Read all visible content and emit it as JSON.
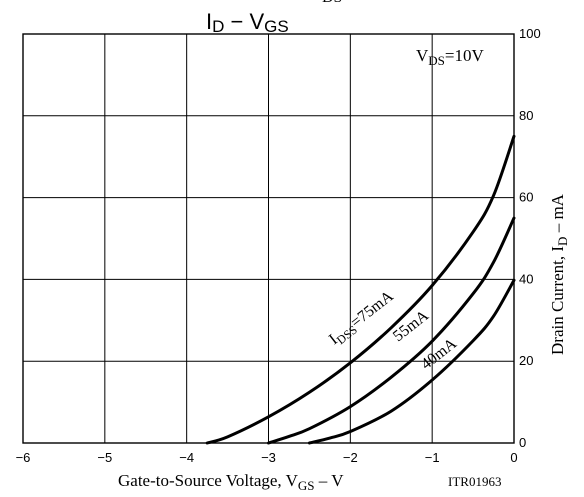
{
  "chart_data": {
    "type": "line",
    "title_main": "I",
    "title_main_sub": "D",
    "title_sep": " − ",
    "title_var": "V",
    "title_var_sub": "GS",
    "title_clipped_sub": "DS",
    "xlim": [
      -6,
      0
    ],
    "ylim": [
      0,
      100
    ],
    "x_ticks": [
      "−6",
      "−5",
      "−4",
      "−3",
      "−2",
      "−1",
      "0"
    ],
    "y_ticks": [
      "0",
      "20",
      "40",
      "60",
      "80",
      "100"
    ],
    "xlabel": {
      "prefix": "Gate-to-Source Voltage, V",
      "sub": "GS",
      "suffix": " – V"
    },
    "ylabel": {
      "prefix": "Drain Current, I",
      "sub": "D",
      "suffix": " – mA"
    },
    "condition": {
      "prefix": "V",
      "sub": "DS",
      "suffix": "=10V"
    },
    "code": "ITR01963",
    "grid": true,
    "series": [
      {
        "label_prefix": "I",
        "label_sub": "DSS",
        "label_suffix": "=75mA",
        "x": [
          -3.75,
          -3.5,
          -3.0,
          -2.5,
          -2.0,
          -1.5,
          -1.0,
          -0.5,
          -0.25,
          0.0
        ],
        "y": [
          0,
          1.5,
          6.4,
          12.4,
          19.6,
          28.2,
          38.5,
          51.6,
          60.5,
          75
        ]
      },
      {
        "label_prefix": "",
        "label_sub": "",
        "label_suffix": "55mA",
        "x": [
          -3.0,
          -2.75,
          -2.5,
          -2.0,
          -1.5,
          -1.0,
          -0.5,
          -0.25,
          0.0
        ],
        "y": [
          0,
          1.6,
          3.5,
          8.9,
          16.1,
          24.9,
          36.5,
          44.2,
          55
        ]
      },
      {
        "label_prefix": "",
        "label_sub": "",
        "label_suffix": "40mA",
        "x": [
          -2.5,
          -2.25,
          -2.0,
          -1.5,
          -1.0,
          -0.5,
          -0.25,
          0.0
        ],
        "y": [
          0,
          1.2,
          2.8,
          7.8,
          15.4,
          25.0,
          31.0,
          39.8
        ]
      }
    ]
  }
}
